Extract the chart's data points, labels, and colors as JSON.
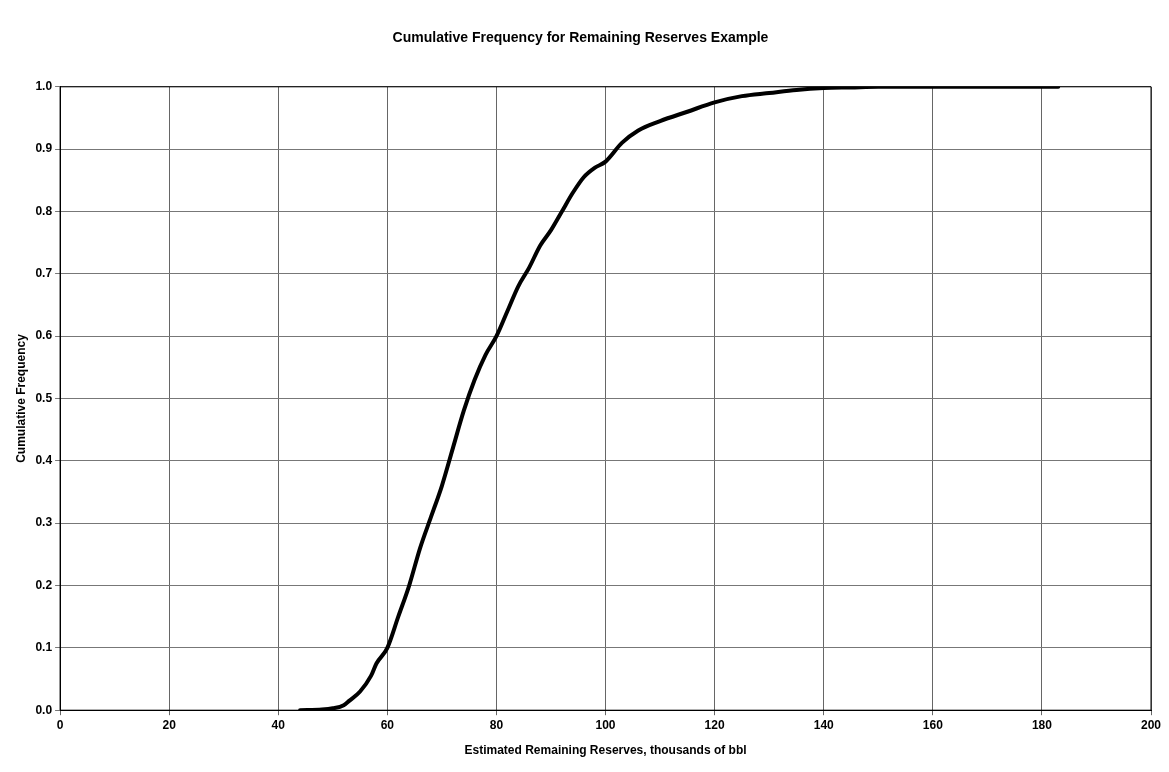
{
  "chart_data": {
    "type": "line",
    "title": "Cumulative Frequency for Remaining Reserves Example",
    "xlabel": "Estimated Remaining Reserves, thousands of bbl",
    "ylabel": "Cumulative Frequency",
    "xlim": [
      0,
      200
    ],
    "xticks": [
      0,
      20,
      40,
      60,
      80,
      100,
      120,
      140,
      160,
      180,
      200
    ],
    "ylim": [
      0,
      1
    ],
    "yticks": [
      {
        "value": 0,
        "label": "0.0"
      },
      {
        "value": 0.1,
        "label": "0.1"
      },
      {
        "value": 0.2,
        "label": "0.2"
      },
      {
        "value": 0.3,
        "label": "0.3"
      },
      {
        "value": 0.4,
        "label": "0.4"
      },
      {
        "value": 0.5,
        "label": "0.5"
      },
      {
        "value": 0.6,
        "label": "0.6"
      },
      {
        "value": 0.7,
        "label": "0.7"
      },
      {
        "value": 0.8,
        "label": "0.8"
      },
      {
        "value": 0.9,
        "label": "0.9"
      },
      {
        "value": 1,
        "label": "1.0"
      }
    ],
    "grid": true,
    "legend": false,
    "marker": "none",
    "line_style": "solid",
    "series": [
      {
        "color": "#000000",
        "x": [
          44,
          48,
          50,
          52,
          53,
          55,
          57,
          58,
          60,
          62,
          64,
          66,
          68,
          70,
          72,
          74,
          76,
          78,
          80,
          82,
          84,
          86,
          88,
          90,
          92,
          94,
          96,
          98,
          100,
          103,
          106,
          110,
          115,
          120,
          125,
          130,
          135,
          140,
          145,
          150,
          160,
          170,
          183
        ],
        "values": [
          0,
          0.001,
          0.003,
          0.008,
          0.015,
          0.03,
          0.055,
          0.075,
          0.1,
          0.15,
          0.2,
          0.26,
          0.31,
          0.36,
          0.42,
          0.48,
          0.53,
          0.57,
          0.6,
          0.64,
          0.68,
          0.71,
          0.745,
          0.77,
          0.8,
          0.83,
          0.855,
          0.87,
          0.88,
          0.91,
          0.93,
          0.945,
          0.96,
          0.975,
          0.985,
          0.99,
          0.995,
          0.998,
          0.999,
          1,
          1,
          1,
          1
        ]
      }
    ]
  }
}
